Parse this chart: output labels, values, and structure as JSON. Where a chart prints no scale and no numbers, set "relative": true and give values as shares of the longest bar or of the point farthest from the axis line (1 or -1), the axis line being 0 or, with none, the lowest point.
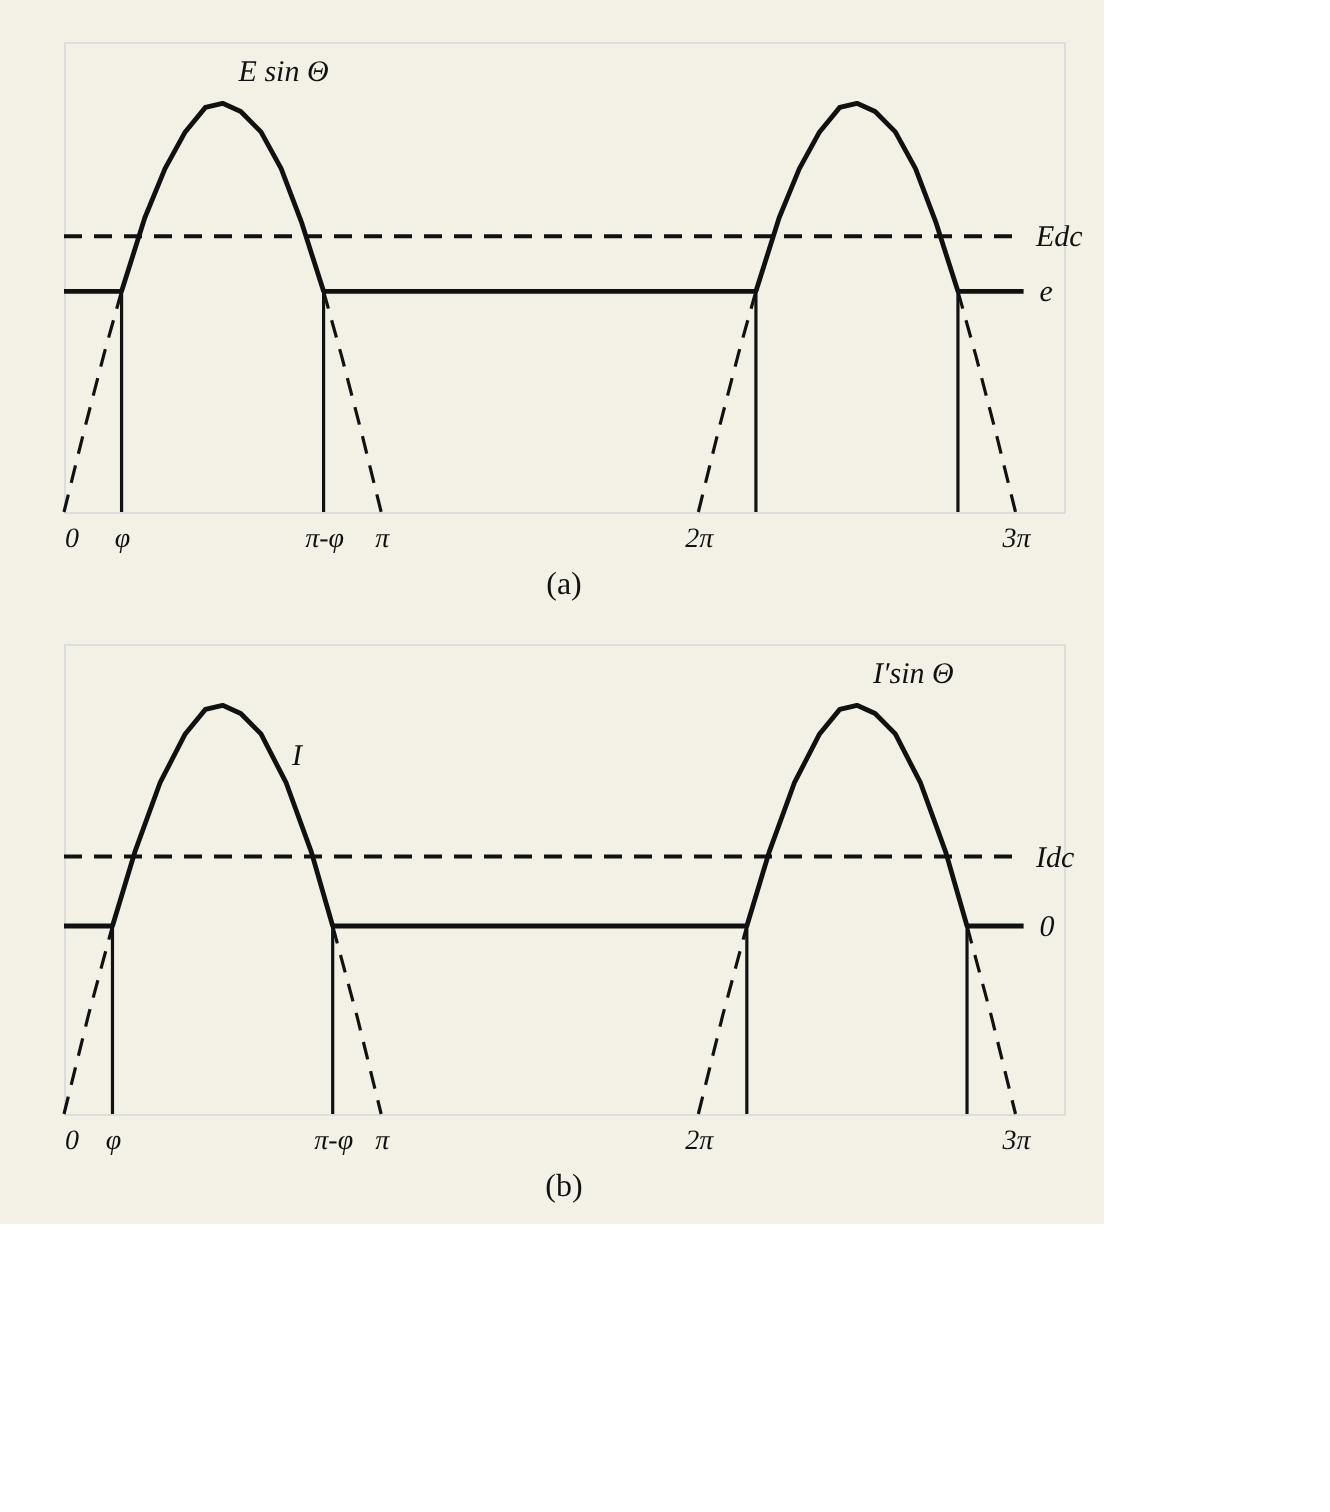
{
  "chart_data": [
    {
      "type": "line",
      "relative": true,
      "xlim": [
        0,
        9.9
      ],
      "xticks": [
        {
          "value": 0,
          "label": "0"
        },
        {
          "value": 0.57,
          "label": "φ"
        },
        {
          "value": 2.57,
          "label": "π-φ"
        },
        {
          "value": 3.14,
          "label": "π"
        },
        {
          "value": 6.28,
          "label": "2π"
        },
        {
          "value": 9.42,
          "label": "3π"
        }
      ],
      "grid": false,
      "line_style": "solid",
      "series": [
        {
          "color": "#111111",
          "line_style": "dashed",
          "x": [
            0,
            0.2,
            0.4,
            0.57
          ],
          "values": [
            0,
            0.2,
            0.39,
            0.54
          ]
        },
        {
          "color": "#111111",
          "line_style": "dashed",
          "x": [
            2.57,
            2.75,
            2.95,
            3.14
          ],
          "values": [
            0.54,
            0.38,
            0.19,
            0
          ]
        },
        {
          "color": "#111111",
          "line_style": "dashed",
          "x": [
            6.28,
            6.48,
            6.68,
            6.85
          ],
          "values": [
            0,
            0.2,
            0.39,
            0.54
          ]
        },
        {
          "color": "#111111",
          "line_style": "dashed",
          "x": [
            8.85,
            9.03,
            9.23,
            9.42
          ],
          "values": [
            0.54,
            0.38,
            0.19,
            0
          ]
        },
        {
          "color": "#111111",
          "x": [
            0.57,
            0.57
          ],
          "values": [
            0,
            0.54
          ]
        },
        {
          "color": "#111111",
          "x": [
            2.57,
            2.57
          ],
          "values": [
            0,
            0.54
          ]
        },
        {
          "color": "#111111",
          "x": [
            6.85,
            6.85
          ],
          "values": [
            0,
            0.54
          ]
        },
        {
          "color": "#111111",
          "x": [
            8.85,
            8.85
          ],
          "values": [
            0,
            0.54
          ]
        },
        {
          "name": "e",
          "color": "#111111",
          "x": [
            0,
            0.57,
            0.8,
            1.0,
            1.2,
            1.4,
            1.57,
            1.75,
            1.95,
            2.15,
            2.35,
            2.57,
            6.85,
            7.08,
            7.28,
            7.48,
            7.68,
            7.85,
            8.03,
            8.23,
            8.43,
            8.63,
            8.85,
            9.5
          ],
          "values": [
            0.54,
            0.54,
            0.72,
            0.84,
            0.93,
            0.99,
            1.0,
            0.98,
            0.93,
            0.84,
            0.71,
            0.54,
            0.54,
            0.72,
            0.84,
            0.93,
            0.99,
            1.0,
            0.98,
            0.93,
            0.84,
            0.71,
            0.54,
            0.54
          ]
        }
      ],
      "ref_lines": [
        {
          "axis": "y",
          "value": 0.675,
          "label": "Edc",
          "line_style": "dashed",
          "color": "#111111"
        }
      ],
      "annotations": [
        {
          "text": "E sin Θ",
          "x": 1.57,
          "y": 1.0
        },
        "(a)"
      ]
    },
    {
      "type": "line",
      "relative": true,
      "xlim": [
        0,
        9.9
      ],
      "xticks": [
        {
          "value": 0,
          "label": "0"
        },
        {
          "value": 0.48,
          "label": "φ"
        },
        {
          "value": 2.66,
          "label": "π-φ"
        },
        {
          "value": 3.14,
          "label": "π"
        },
        {
          "value": 6.28,
          "label": "2π"
        },
        {
          "value": 9.42,
          "label": "3π"
        }
      ],
      "grid": false,
      "line_style": "solid",
      "series": [
        {
          "color": "#111111",
          "line_style": "dashed",
          "x": [
            0,
            0.24,
            0.48
          ],
          "values": [
            0,
            0.24,
            0.46
          ]
        },
        {
          "color": "#111111",
          "line_style": "dashed",
          "x": [
            2.66,
            2.9,
            3.14
          ],
          "values": [
            0.46,
            0.24,
            0
          ]
        },
        {
          "color": "#111111",
          "line_style": "dashed",
          "x": [
            6.28,
            6.52,
            6.76
          ],
          "values": [
            0,
            0.24,
            0.46
          ]
        },
        {
          "color": "#111111",
          "line_style": "dashed",
          "x": [
            8.94,
            9.18,
            9.42
          ],
          "values": [
            0.46,
            0.24,
            0
          ]
        },
        {
          "color": "#111111",
          "x": [
            0.48,
            0.48
          ],
          "values": [
            0,
            0.46
          ]
        },
        {
          "color": "#111111",
          "x": [
            2.66,
            2.66
          ],
          "values": [
            0,
            0.46
          ]
        },
        {
          "color": "#111111",
          "x": [
            6.76,
            6.76
          ],
          "values": [
            0,
            0.46
          ]
        },
        {
          "color": "#111111",
          "x": [
            8.94,
            8.94
          ],
          "values": [
            0,
            0.46
          ]
        },
        {
          "name": "0",
          "color": "#111111",
          "x": [
            0,
            0.48,
            0.7,
            0.95,
            1.2,
            1.4,
            1.57,
            1.75,
            1.95,
            2.2,
            2.45,
            2.66,
            6.76,
            6.98,
            7.23,
            7.48,
            7.68,
            7.85,
            8.03,
            8.23,
            8.48,
            8.73,
            8.94,
            9.5
          ],
          "values": [
            0.46,
            0.46,
            0.64,
            0.81,
            0.93,
            0.99,
            1.0,
            0.98,
            0.93,
            0.81,
            0.64,
            0.46,
            0.46,
            0.64,
            0.81,
            0.93,
            0.99,
            1.0,
            0.98,
            0.93,
            0.81,
            0.64,
            0.46,
            0.46
          ]
        }
      ],
      "ref_lines": [
        {
          "axis": "y",
          "value": 0.63,
          "label": "Idc",
          "line_style": "dashed",
          "color": "#111111"
        }
      ],
      "annotations": [
        {
          "text": "I",
          "x": 2.1,
          "y": 0.8
        },
        {
          "text": "I′sin Θ",
          "x": 7.85,
          "y": 1.0
        },
        "(b)"
      ]
    }
  ]
}
